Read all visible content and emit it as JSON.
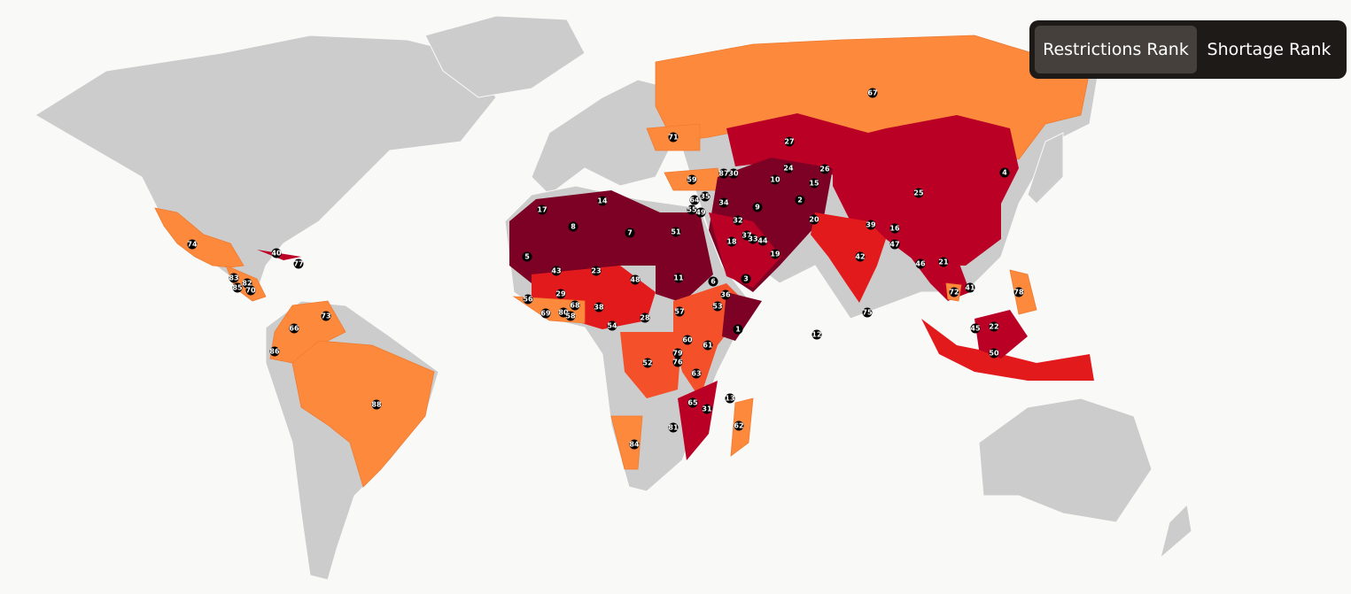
{
  "tabs": [
    "Restrictions Rank",
    "Shortage Rank"
  ],
  "ranks": [
    67,
    71,
    27,
    4,
    24,
    26,
    87,
    30,
    10,
    15,
    59,
    25,
    2,
    64,
    35,
    34,
    14,
    17,
    55,
    49,
    9,
    20,
    32,
    39,
    16,
    8,
    7,
    51,
    37,
    33,
    44,
    18,
    47,
    19,
    5,
    42,
    21,
    46,
    43,
    23,
    48,
    11,
    6,
    3,
    72,
    41,
    78,
    29,
    36,
    56,
    68,
    53,
    80,
    58,
    69,
    38,
    57,
    28,
    75,
    54,
    1,
    12,
    45,
    22,
    60,
    61,
    79,
    76,
    52,
    63,
    50,
    13,
    65,
    31,
    81,
    62,
    84,
    74,
    40,
    77,
    83,
    82,
    85,
    70,
    73,
    66,
    86,
    88
  ]
}
